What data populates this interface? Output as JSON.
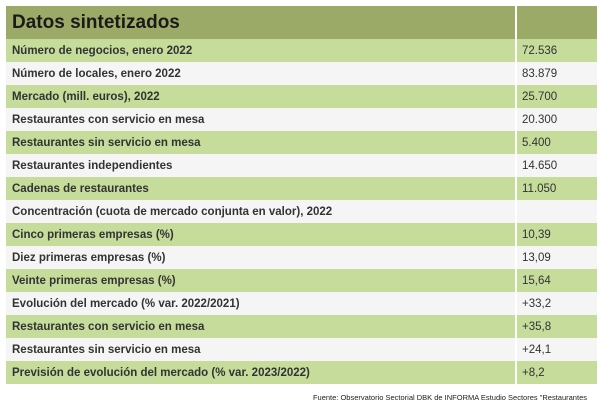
{
  "table": {
    "title": "Datos sintetizados",
    "header_value": "",
    "rows": [
      {
        "label": "Número de negocios, enero 2022",
        "value": "72.536",
        "shade": "g"
      },
      {
        "label": "Número de locales, enero 2022",
        "value": "83.879",
        "shade": "w"
      },
      {
        "label": "Mercado (mill. euros), 2022",
        "value": "25.700",
        "shade": "g"
      },
      {
        "label": "Restaurantes con servicio en mesa",
        "value": "20.300",
        "shade": "w"
      },
      {
        "label": "Restaurantes sin servicio en mesa",
        "value": "5.400",
        "shade": "g"
      },
      {
        "label": "Restaurantes independientes",
        "value": "14.650",
        "shade": "w"
      },
      {
        "label": "Cadenas de restaurantes",
        "value": "11.050",
        "shade": "g"
      },
      {
        "label": "Concentración (cuota de mercado conjunta en valor), 2022",
        "value": "",
        "shade": "w"
      },
      {
        "label": "Cinco primeras empresas (%)",
        "value": "10,39",
        "shade": "g"
      },
      {
        "label": "Diez primeras empresas (%)",
        "value": "13,09",
        "shade": "w"
      },
      {
        "label": "Veinte primeras empresas (%)",
        "value": "15,64",
        "shade": "g"
      },
      {
        "label": "Evolución del mercado (% var. 2022/2021)",
        "value": "+33,2",
        "shade": "w"
      },
      {
        "label": "Restaurantes con servicio en mesa",
        "value": "+35,8",
        "shade": "g"
      },
      {
        "label": "Restaurantes sin servicio en mesa",
        "value": "+24,1",
        "shade": "w"
      },
      {
        "label": "Previsión de evolución del mercado (% var. 2023/2022)",
        "value": "+8,2",
        "shade": "g"
      }
    ]
  },
  "source": "Fuente: Observatorio Sectorial DBK de INFORMA Estudio Sectores \"Restaurantes",
  "colors": {
    "header": "#9caa67",
    "green_row": "#c5dc9b",
    "light_row": "#f4f5f4"
  }
}
